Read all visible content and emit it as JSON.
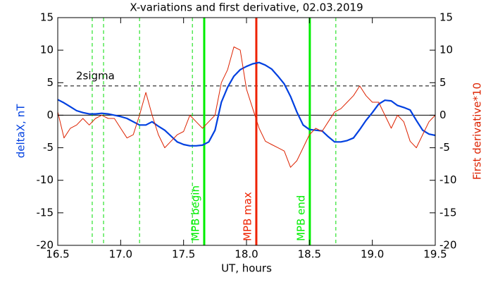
{
  "chart_data": {
    "type": "line",
    "title": "X-variations and first derivative, 02.03.2019",
    "xlabel": "UT, hours",
    "ylabel": "deltaX, nT",
    "y2label": "First derivative*10",
    "xlim": [
      16.5,
      19.5
    ],
    "xticks": [
      16.5,
      {
        "value": 17,
        "label": "17.0"
      },
      17.5,
      {
        "value": 18,
        "label": "18.0"
      },
      18.5,
      {
        "value": 19,
        "label": "19.0"
      },
      19.5
    ],
    "ylim": [
      -20,
      15
    ],
    "yticks": [
      -20,
      -15,
      -10,
      -5,
      0,
      5,
      10,
      15
    ],
    "y2lim": [
      -20,
      15
    ],
    "y2ticks": [
      -20,
      -15,
      -10,
      -5,
      0,
      5,
      10,
      15
    ],
    "x": [
      16.5,
      16.55,
      16.6,
      16.65,
      16.7,
      16.75,
      16.8,
      16.85,
      16.9,
      16.95,
      17.0,
      17.05,
      17.1,
      17.15,
      17.2,
      17.25,
      17.3,
      17.35,
      17.4,
      17.45,
      17.5,
      17.55,
      17.6,
      17.65,
      17.7,
      17.75,
      17.8,
      17.85,
      17.9,
      17.95,
      18.0,
      18.05,
      18.1,
      18.15,
      18.2,
      18.25,
      18.3,
      18.35,
      18.4,
      18.45,
      18.5,
      18.55,
      18.6,
      18.65,
      18.7,
      18.75,
      18.8,
      18.85,
      18.9,
      18.95,
      19.0,
      19.05,
      19.1,
      19.15,
      19.2,
      19.25,
      19.3,
      19.35,
      19.4,
      19.45,
      19.5
    ],
    "series": [
      {
        "name": "deltaX, nT",
        "color": "#0040e0",
        "axis": "y",
        "values": [
          2.4,
          1.9,
          1.3,
          0.7,
          0.4,
          0.2,
          0.2,
          0.3,
          0.2,
          0,
          -0.2,
          -0.5,
          -1,
          -1.5,
          -1.5,
          -1,
          -1.7,
          -2.3,
          -3.2,
          -4.1,
          -4.5,
          -4.7,
          -4.7,
          -4.6,
          -4.1,
          -2.3,
          2,
          4.3,
          6,
          7,
          7.5,
          7.9,
          8.1,
          7.7,
          7.1,
          6,
          4.8,
          2.9,
          0.5,
          -1.5,
          -2.2,
          -2.3,
          -2.4,
          -3.3,
          -4.1,
          -4.1,
          -3.9,
          -3.5,
          -2.2,
          -0.8,
          0.4,
          1.7,
          2.3,
          2.2,
          1.5,
          1.2,
          0.8,
          -0.8,
          -2.3,
          -2.9,
          -3.1
        ]
      },
      {
        "name": "First derivative*10",
        "color": "#dd2200",
        "axis": "y2",
        "values": [
          0.5,
          -3.5,
          -2,
          -1.5,
          -0.5,
          -1.5,
          -0.5,
          0,
          -0.5,
          -0.5,
          -2,
          -3.5,
          -3,
          0,
          3.5,
          0,
          -3,
          -5,
          -4,
          -3,
          -2.5,
          0,
          -1,
          -2,
          -1,
          0,
          5,
          7,
          10.5,
          10,
          4,
          1,
          -2,
          -4,
          -4.5,
          -5,
          -5.5,
          -8,
          -7,
          -5,
          -3,
          -2,
          -2.5,
          -1,
          0.5,
          1,
          2,
          3,
          4.5,
          3,
          2,
          2,
          0,
          -2,
          0,
          -1,
          -4,
          -5,
          -3,
          -1,
          0
        ]
      }
    ],
    "hlines": [
      {
        "y": 4.5,
        "label": "2sigma",
        "color": "#000000",
        "style": "dashed"
      },
      {
        "y": 0,
        "color": "#000000",
        "style": "solid"
      }
    ],
    "vlines": [
      {
        "x": 16.774,
        "color": "#00dd00",
        "style": "dashed"
      },
      {
        "x": 16.864,
        "color": "#00dd00",
        "style": "dashed"
      },
      {
        "x": 17.15,
        "color": "#00dd00",
        "style": "dashed"
      },
      {
        "x": 17.57,
        "color": "#00dd00",
        "style": "dashed"
      },
      {
        "x": 17.664,
        "color": "#00ee00",
        "style": "solid",
        "label": "MPB begin"
      },
      {
        "x": 18.078,
        "color": "#ee2200",
        "style": "solid",
        "label": "MPB max"
      },
      {
        "x": 18.503,
        "color": "#00ee00",
        "style": "solid",
        "label": "MPB end"
      },
      {
        "x": 18.71,
        "color": "#00dd00",
        "style": "dashed"
      }
    ]
  }
}
